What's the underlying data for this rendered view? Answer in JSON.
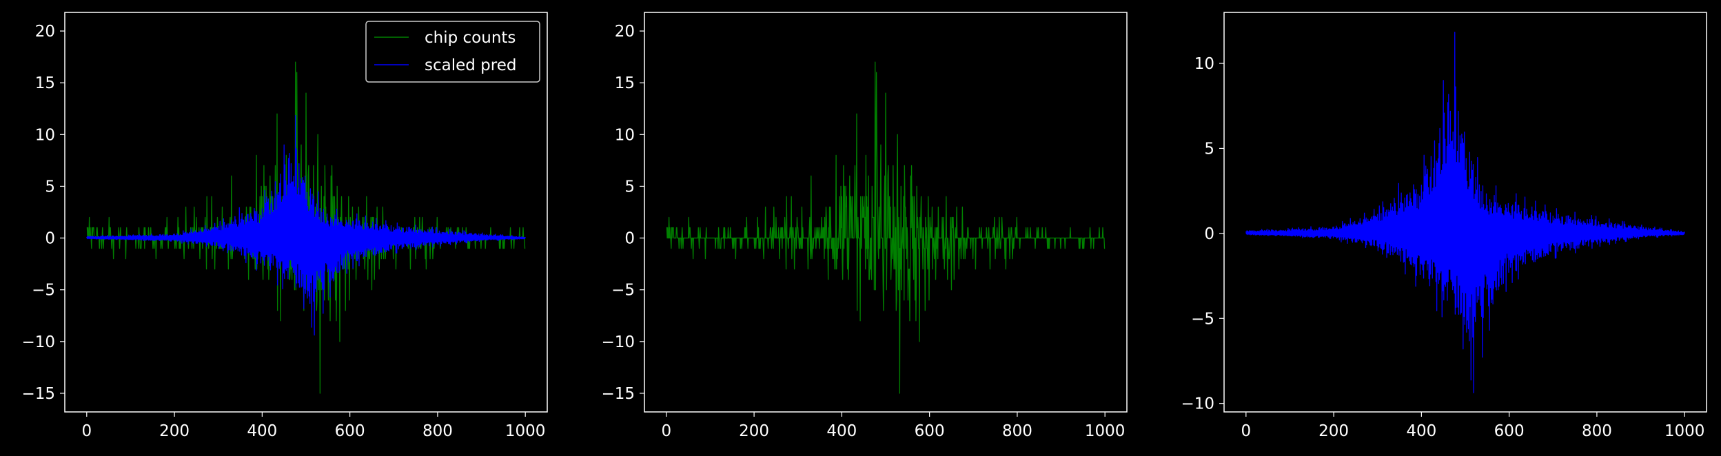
{
  "figure": {
    "background": "#000000",
    "foreground": "#ffffff"
  },
  "chart_data": [
    {
      "type": "line",
      "title": "",
      "xlabel": "",
      "ylabel": "",
      "xlim": [
        -50,
        1050
      ],
      "ylim": [
        -16.8,
        21.8
      ],
      "xticks": [
        0,
        200,
        400,
        600,
        800,
        1000
      ],
      "yticks": [
        -15,
        -10,
        -5,
        0,
        5,
        10,
        15,
        20
      ],
      "grid": false,
      "legend": {
        "placement": "upper-right",
        "entries": [
          "chip counts",
          "scaled pred"
        ]
      },
      "series": [
        {
          "name": "chip counts",
          "color": "#008000",
          "x_range": [
            0,
            1000
          ],
          "envelope_x": [
            0,
            100,
            200,
            300,
            350,
            400,
            450,
            480,
            500,
            520,
            540,
            560,
            600,
            700,
            800,
            900,
            1000
          ],
          "envelope_upper": [
            2,
            2,
            2,
            5,
            7,
            9,
            13,
            20,
            14,
            13,
            10,
            8,
            4,
            3,
            2,
            1,
            1
          ],
          "envelope_lower": [
            -1,
            -2,
            -2,
            -3,
            -4,
            -6,
            -8,
            -9,
            -11,
            -14,
            -15,
            -15,
            -7,
            -4,
            -2,
            -1,
            -1
          ],
          "description_of_values": "integer counts oscillating around 0"
        },
        {
          "name": "scaled pred",
          "color": "#0000ff",
          "x_range": [
            0,
            1000
          ],
          "envelope_x": [
            0,
            100,
            200,
            300,
            350,
            400,
            450,
            475,
            500,
            520,
            550,
            600,
            700,
            800,
            900,
            1000
          ],
          "envelope_upper": [
            0.2,
            0.3,
            0.5,
            1.5,
            3,
            4,
            9,
            12,
            8,
            5,
            3,
            2.5,
            1.5,
            1,
            0.5,
            0.1
          ],
          "envelope_lower": [
            -0.1,
            -0.2,
            -0.4,
            -1,
            -2,
            -3.5,
            -5,
            -6,
            -7,
            -9.5,
            -6,
            -3,
            -1.5,
            -0.8,
            -0.3,
            -0.1
          ]
        }
      ]
    },
    {
      "type": "line",
      "title": "",
      "xlabel": "",
      "ylabel": "",
      "xlim": [
        -50,
        1050
      ],
      "ylim": [
        -16.8,
        21.8
      ],
      "xticks": [
        0,
        200,
        400,
        600,
        800,
        1000
      ],
      "yticks": [
        -15,
        -10,
        -5,
        0,
        5,
        10,
        15,
        20
      ],
      "grid": false,
      "series": [
        {
          "color": "#008000",
          "x_range": [
            0,
            1000
          ],
          "envelope_x": [
            0,
            100,
            200,
            300,
            350,
            400,
            450,
            480,
            500,
            520,
            540,
            560,
            600,
            700,
            800,
            900,
            1000
          ],
          "envelope_upper": [
            2,
            2,
            2,
            5,
            7,
            9,
            13,
            20,
            14,
            13,
            10,
            8,
            4,
            3,
            2,
            1,
            1
          ],
          "envelope_lower": [
            -1,
            -2,
            -2,
            -3,
            -4,
            -6,
            -8,
            -9,
            -11,
            -14,
            -15,
            -15,
            -7,
            -4,
            -2,
            -1,
            -1
          ]
        }
      ]
    },
    {
      "type": "line",
      "title": "",
      "xlabel": "",
      "ylabel": "",
      "xlim": [
        -50,
        1050
      ],
      "ylim": [
        -10.5,
        13.0
      ],
      "xticks": [
        0,
        200,
        400,
        600,
        800,
        1000
      ],
      "yticks": [
        -10,
        -5,
        0,
        5,
        10
      ],
      "grid": false,
      "series": [
        {
          "color": "#0000ff",
          "x_range": [
            0,
            1000
          ],
          "envelope_x": [
            0,
            100,
            200,
            300,
            350,
            400,
            450,
            475,
            500,
            520,
            550,
            600,
            700,
            800,
            900,
            1000
          ],
          "envelope_upper": [
            0.2,
            0.3,
            0.5,
            1.5,
            3,
            4,
            9,
            12,
            8,
            5,
            3,
            2.5,
            1.5,
            1,
            0.5,
            0.1
          ],
          "envelope_lower": [
            -0.1,
            -0.2,
            -0.4,
            -1,
            -2,
            -3.5,
            -5,
            -6,
            -7,
            -9.5,
            -6,
            -3,
            -1.5,
            -0.8,
            -0.3,
            -0.1
          ]
        }
      ]
    }
  ]
}
